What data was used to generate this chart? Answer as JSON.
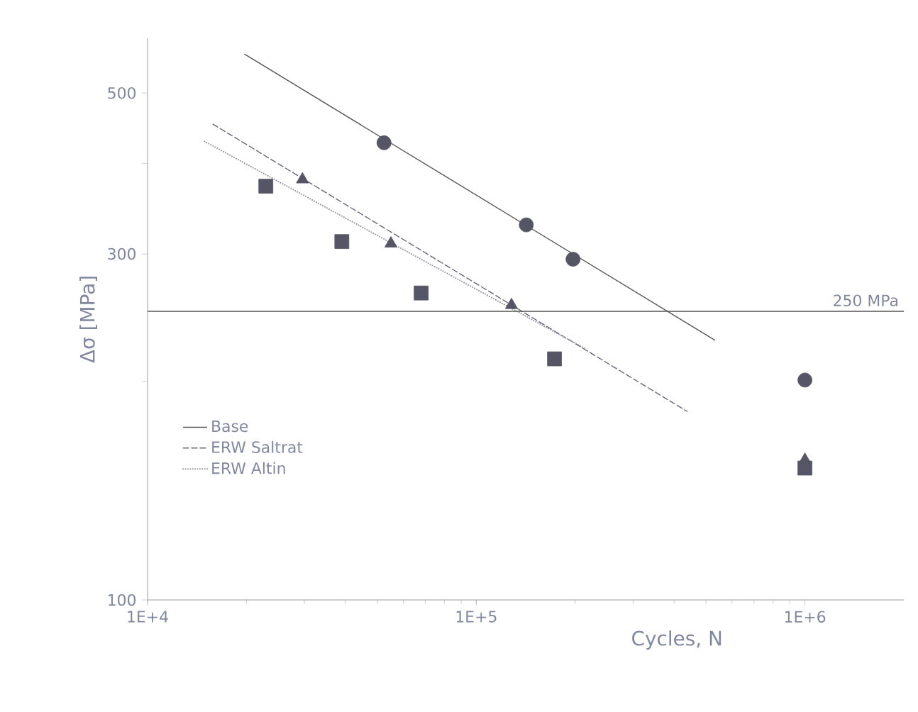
{
  "chart_data": {
    "type": "scatter",
    "xlabel": "Cycles,   N",
    "ylabel": "Δσ  [MPa]",
    "log": "xy",
    "xlim": [
      10000,
      2000000
    ],
    "ylim": [
      100,
      595
    ],
    "xticks": [
      {
        "value": 10000,
        "label": "1E+4"
      },
      {
        "value": 100000,
        "label": "1E+5"
      },
      {
        "value": 1000000,
        "label": "1E+6"
      }
    ],
    "yticks": [
      100,
      {
        "value": 200,
        "label": null
      },
      300,
      {
        "value": 400,
        "label": null
      },
      500
    ],
    "legend": "bottom left",
    "grid": false,
    "ref_lines": [
      {
        "axis": "y",
        "value": 250,
        "label": "250 MPa",
        "color": "#555555"
      }
    ],
    "series": [
      {
        "name": "Base",
        "type": "line",
        "color": "#555555",
        "line_style": "solid",
        "marker": "none",
        "x": [
          19700,
          533000
        ],
        "values": [
          566,
          228
        ]
      },
      {
        "name": "ERW Saltrat",
        "type": "line",
        "color": "#666677",
        "line_style": "dashed",
        "marker": "none",
        "x": [
          15800,
          438000
        ],
        "values": [
          453,
          182
        ]
      },
      {
        "name": "ERW Altin",
        "type": "line",
        "color": "#9a9aa6",
        "line_style": "dotted",
        "marker": "none",
        "x": [
          14900,
          215000
        ],
        "values": [
          429,
          222
        ]
      },
      {
        "color": "#555566",
        "marker": "circle",
        "x": [
          52400,
          142000,
          197000,
          1000000
        ],
        "values": [
          427,
          329,
          295,
          201
        ]
      },
      {
        "color": "#555566",
        "marker": "triangle",
        "x": [
          29600,
          55000,
          128000,
          1000000
        ],
        "values": [
          380,
          310,
          255,
          156
        ]
      },
      {
        "color": "#555566",
        "marker": "square",
        "x": [
          22900,
          39000,
          68000,
          173000,
          1000000
        ],
        "values": [
          372,
          312,
          265,
          215,
          152
        ]
      }
    ]
  }
}
